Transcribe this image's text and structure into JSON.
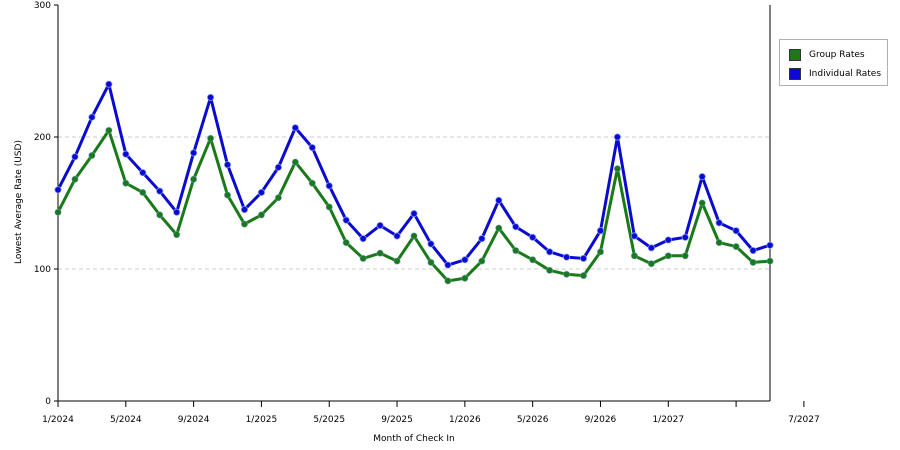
{
  "chart_data": {
    "type": "line",
    "title": "",
    "xlabel": "Month of Check In",
    "ylabel": "Lowest Average Rate (USD)",
    "ylim": [
      0,
      300
    ],
    "yticks": [
      "0",
      "100",
      "200",
      "300"
    ],
    "gridlines": [
      100,
      200
    ],
    "x_ticks_labeled": [
      "1/2024",
      "5/2024",
      "9/2024",
      "1/2025",
      "5/2025",
      "9/2025",
      "1/2026",
      "5/2026",
      "9/2026",
      "1/2027",
      "",
      "7/2027"
    ],
    "x_months": [
      "1/2024",
      "2/2024",
      "3/2024",
      "4/2024",
      "5/2024",
      "6/2024",
      "7/2024",
      "8/2024",
      "9/2024",
      "10/2024",
      "11/2024",
      "12/2024",
      "1/2025",
      "2/2025",
      "3/2025",
      "4/2025",
      "5/2025",
      "6/2025",
      "7/2025",
      "8/2025",
      "9/2025",
      "10/2025",
      "11/2025",
      "12/2025",
      "1/2026",
      "2/2026",
      "3/2026",
      "4/2026",
      "5/2026",
      "6/2026",
      "7/2026",
      "8/2026",
      "9/2026",
      "10/2026",
      "11/2026",
      "12/2026",
      "1/2027",
      "2/2027",
      "3/2027",
      "4/2027",
      "5/2027",
      "6/2027",
      "7/2027"
    ],
    "legend_position": "right",
    "series": [
      {
        "name": "Group Rates",
        "color": "#1a7a1a",
        "values": [
          143,
          168,
          186,
          205,
          165,
          158,
          141,
          126,
          168,
          199,
          156,
          134,
          141,
          154,
          181,
          165,
          147,
          120,
          108,
          112,
          106,
          125,
          105,
          91,
          93,
          106,
          131,
          114,
          107,
          99,
          96,
          95,
          113,
          176,
          110,
          104,
          110,
          110,
          150,
          120,
          117,
          105,
          106
        ]
      },
      {
        "name": "Individual Rates",
        "color": "#0a0ad0",
        "values": [
          160,
          185,
          215,
          240,
          187,
          173,
          159,
          143,
          188,
          230,
          179,
          145,
          158,
          177,
          207,
          192,
          163,
          137,
          123,
          133,
          125,
          142,
          119,
          103,
          107,
          123,
          152,
          132,
          124,
          113,
          109,
          108,
          129,
          200,
          125,
          116,
          122,
          124,
          170,
          135,
          129,
          114,
          118
        ]
      }
    ]
  }
}
